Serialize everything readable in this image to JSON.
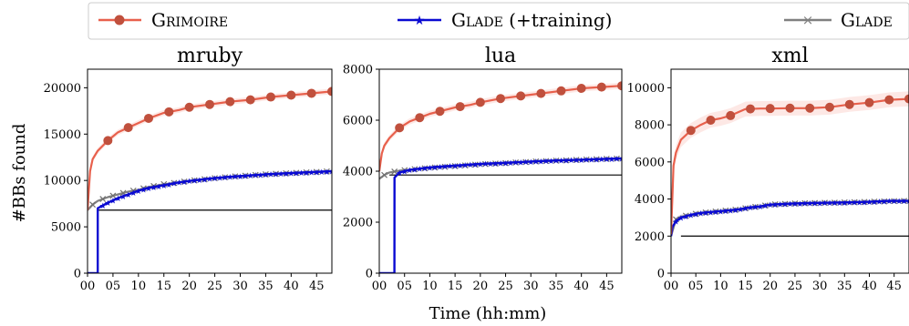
{
  "legend": {
    "entries": [
      {
        "name": "Grimoire",
        "suffix": "",
        "color": "#e8604c",
        "marker": "circle"
      },
      {
        "name": "Glade",
        "suffix": " (+training)",
        "color": "#0a0ad2",
        "marker": "star"
      },
      {
        "name": "Glade",
        "suffix": "",
        "color": "#808080",
        "marker": "x"
      }
    ]
  },
  "ylabel": "#BBs found",
  "xlabel": "Time (hh:mm)",
  "chart_data": [
    {
      "type": "line",
      "title": "mruby",
      "xlim": [
        0,
        48
      ],
      "ylim": [
        0,
        22000
      ],
      "xticks": [
        "00",
        "05",
        "10",
        "15",
        "20",
        "25",
        "30",
        "35",
        "40",
        "45"
      ],
      "yticks": [
        "0",
        "5000",
        "10000",
        "15000",
        "20000"
      ],
      "baseline": 6800,
      "series": [
        {
          "name": "Grimoire",
          "x": [
            0,
            0.5,
            1,
            2,
            4,
            6,
            8,
            10,
            12,
            15,
            18,
            20,
            24,
            28,
            32,
            36,
            40,
            44,
            48
          ],
          "y": [
            6800,
            11000,
            12300,
            13200,
            14300,
            15200,
            15700,
            16200,
            16700,
            17300,
            17600,
            17900,
            18200,
            18500,
            18700,
            19000,
            19200,
            19400,
            19600
          ],
          "band": 300
        },
        {
          "name": "Glade (+training)",
          "x": [
            2,
            2.01,
            4,
            6,
            8,
            10,
            12,
            15,
            18,
            20,
            24,
            28,
            32,
            36,
            40,
            44,
            48
          ],
          "y": [
            0,
            7000,
            7600,
            8100,
            8500,
            8900,
            9200,
            9500,
            9800,
            9950,
            10200,
            10400,
            10550,
            10700,
            10800,
            10900,
            11000
          ],
          "band": 0
        },
        {
          "name": "Glade",
          "x": [
            0,
            1,
            2,
            4,
            6,
            8,
            10,
            12,
            15,
            18,
            20,
            24,
            28,
            32,
            36,
            40,
            44,
            48
          ],
          "y": [
            6800,
            7400,
            7800,
            8200,
            8500,
            8800,
            9000,
            9300,
            9600,
            9800,
            9950,
            10200,
            10400,
            10550,
            10700,
            10800,
            10900,
            11000
          ],
          "band": 0
        }
      ]
    },
    {
      "type": "line",
      "title": "lua",
      "xlim": [
        0,
        48
      ],
      "ylim": [
        0,
        8000
      ],
      "xticks": [
        "00",
        "05",
        "10",
        "15",
        "20",
        "25",
        "30",
        "35",
        "40",
        "45"
      ],
      "yticks": [
        "0",
        "2000",
        "4000",
        "6000",
        "8000"
      ],
      "baseline": 3850,
      "series": [
        {
          "name": "Grimoire",
          "x": [
            0,
            0.5,
            1,
            2,
            4,
            6,
            8,
            10,
            12,
            15,
            18,
            20,
            24,
            28,
            32,
            36,
            40,
            44,
            48
          ],
          "y": [
            4000,
            4700,
            5000,
            5300,
            5700,
            5950,
            6100,
            6250,
            6350,
            6500,
            6600,
            6700,
            6850,
            6950,
            7050,
            7150,
            7250,
            7300,
            7350
          ],
          "band": 120
        },
        {
          "name": "Glade (+training)",
          "x": [
            3,
            3.01,
            4,
            6,
            8,
            10,
            12,
            15,
            18,
            20,
            24,
            28,
            32,
            36,
            40,
            44,
            48
          ],
          "y": [
            0,
            3750,
            3950,
            4050,
            4100,
            4150,
            4180,
            4220,
            4260,
            4290,
            4320,
            4360,
            4400,
            4430,
            4450,
            4480,
            4500
          ],
          "band": 0
        },
        {
          "name": "Glade",
          "x": [
            0,
            1,
            2,
            4,
            6,
            8,
            10,
            12,
            15,
            18,
            20,
            24,
            28,
            32,
            36,
            40,
            44,
            48
          ],
          "y": [
            3700,
            3850,
            3950,
            4020,
            4060,
            4100,
            4130,
            4160,
            4200,
            4240,
            4270,
            4310,
            4350,
            4390,
            4420,
            4450,
            4480,
            4500
          ],
          "band": 0
        }
      ]
    },
    {
      "type": "line",
      "title": "xml",
      "xlim": [
        0,
        48
      ],
      "ylim": [
        0,
        11000
      ],
      "xticks": [
        "00",
        "05",
        "10",
        "15",
        "20",
        "25",
        "30",
        "35",
        "40",
        "45"
      ],
      "yticks": [
        "0",
        "2000",
        "4000",
        "6000",
        "8000",
        "10000"
      ],
      "baseline": 2000,
      "series": [
        {
          "name": "Grimoire",
          "x": [
            0,
            0.5,
            1,
            2,
            4,
            6,
            8,
            10,
            12,
            15,
            18,
            20,
            24,
            28,
            32,
            36,
            40,
            44,
            48
          ],
          "y": [
            2100,
            5800,
            6500,
            7200,
            7700,
            8000,
            8250,
            8350,
            8500,
            8850,
            8880,
            8880,
            8900,
            8900,
            8950,
            9100,
            9200,
            9350,
            9400
          ],
          "band": 400
        },
        {
          "name": "Glade (+training)",
          "x": [
            0,
            0.3,
            1,
            2,
            4,
            6,
            8,
            10,
            12,
            14,
            16,
            18,
            20,
            24,
            28,
            32,
            36,
            40,
            44,
            48
          ],
          "y": [
            2000,
            2500,
            2800,
            3000,
            3150,
            3250,
            3300,
            3350,
            3400,
            3450,
            3550,
            3600,
            3700,
            3750,
            3780,
            3800,
            3820,
            3850,
            3900,
            3900
          ],
          "band": 0
        },
        {
          "name": "Glade",
          "x": [
            0,
            1,
            2,
            4,
            6,
            8,
            10,
            12,
            14,
            16,
            18,
            20,
            24,
            28,
            32,
            36,
            40,
            44,
            48
          ],
          "y": [
            2000,
            2900,
            3050,
            3150,
            3250,
            3300,
            3350,
            3400,
            3450,
            3550,
            3600,
            3700,
            3750,
            3780,
            3800,
            3820,
            3850,
            3880,
            3900
          ],
          "band": 120
        }
      ]
    }
  ]
}
